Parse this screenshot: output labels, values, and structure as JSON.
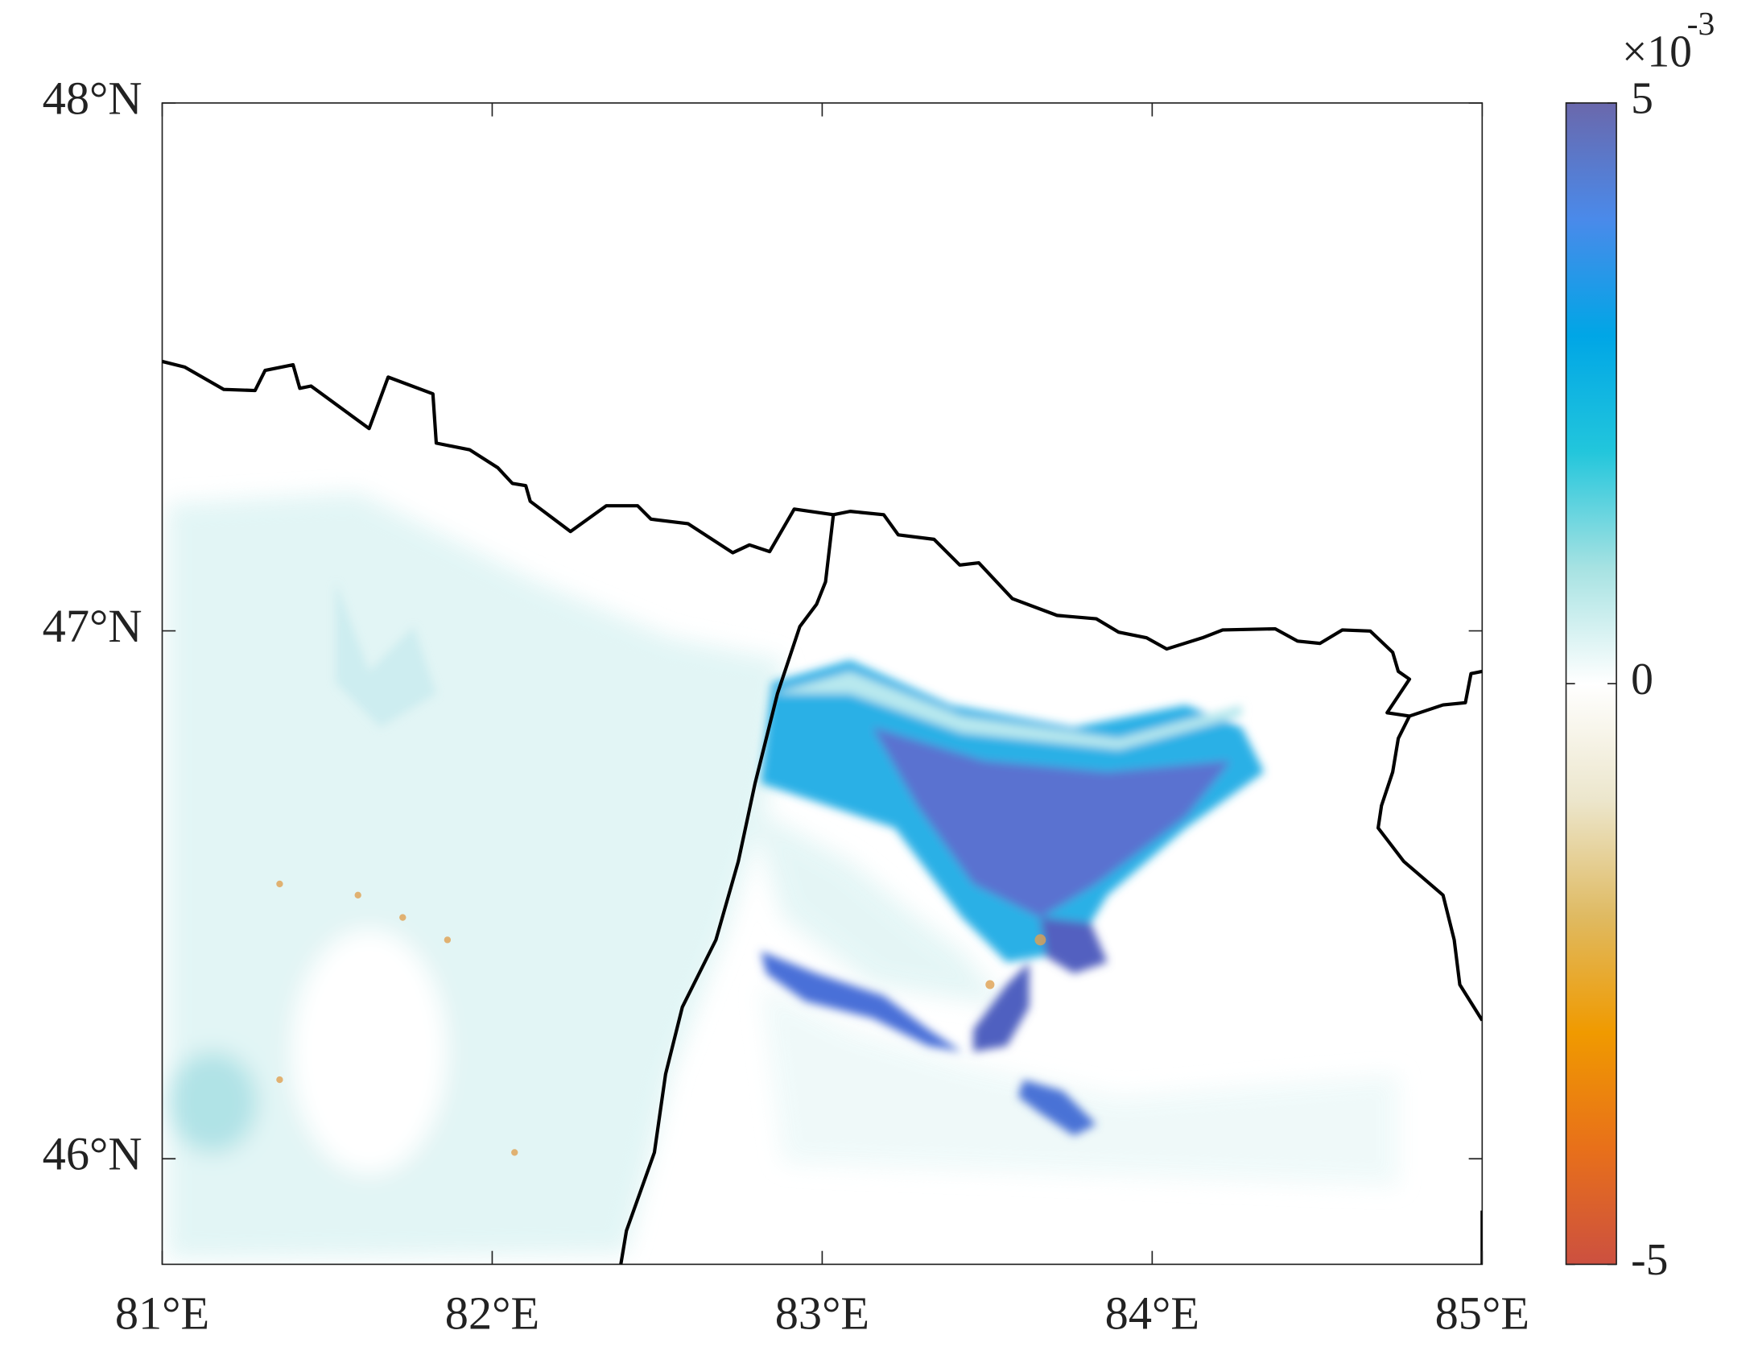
{
  "chart_data": {
    "type": "map",
    "xlim": [
      81,
      85
    ],
    "ylim": [
      45.8,
      48
    ],
    "xticks": [
      {
        "value": 81,
        "label": "81°E"
      },
      {
        "value": 82,
        "label": "82°E"
      },
      {
        "value": 83,
        "label": "83°E"
      },
      {
        "value": 84,
        "label": "84°E"
      },
      {
        "value": 85,
        "label": "85°E"
      }
    ],
    "yticks": [
      {
        "value": 46,
        "label": "46°N"
      },
      {
        "value": 47,
        "label": "47°N"
      },
      {
        "value": 48,
        "label": "48°N"
      }
    ],
    "colorbar": {
      "clim": [
        -5,
        5
      ],
      "ticks": [
        -5,
        0,
        5
      ],
      "multiplier": "×10",
      "exponent": "-3",
      "colormap": [
        "#cc5040",
        "#e8701a",
        "#f09a00",
        "#dfba62",
        "#ece6cc",
        "#ffffff",
        "#a6e2e2",
        "#22c6dc",
        "#00a6e6",
        "#4a8aea",
        "#6a68ac"
      ]
    }
  }
}
